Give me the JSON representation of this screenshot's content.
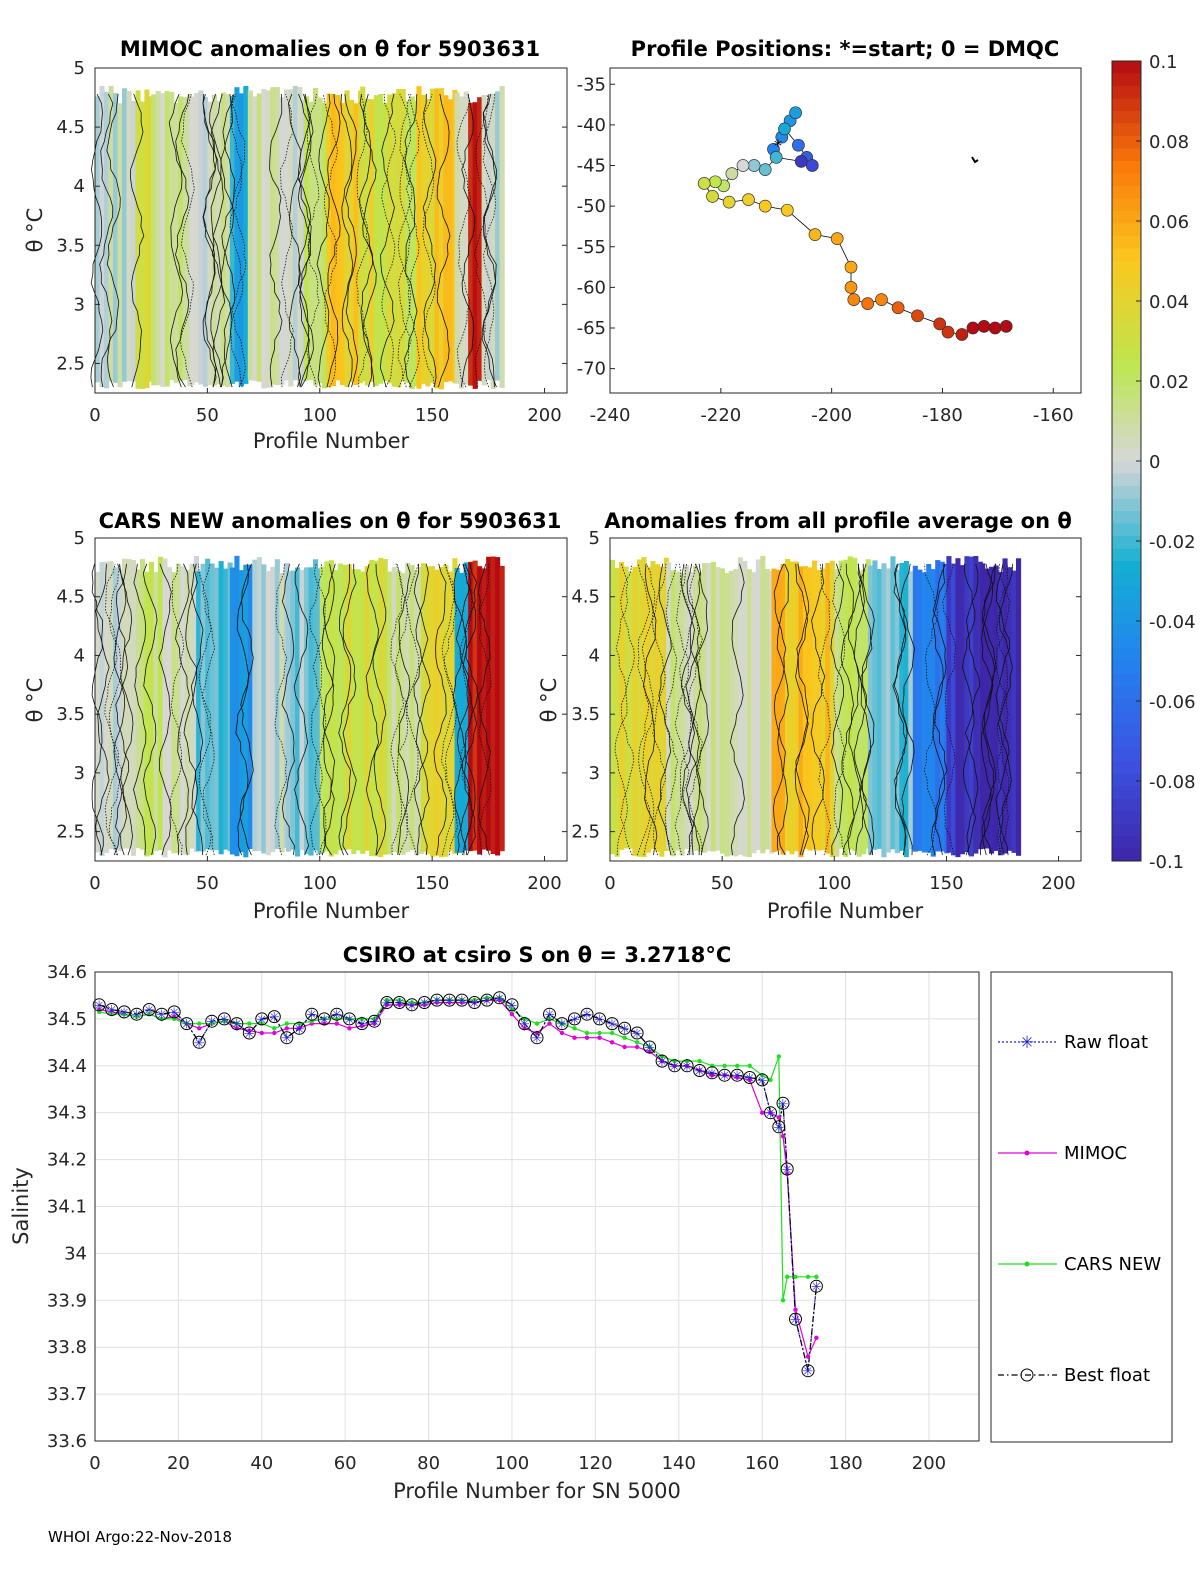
{
  "footer": "WHOI Argo:22-Nov-2018",
  "colorbar": {
    "ticks": [
      "0.1",
      "0.08",
      "0.06",
      "0.04",
      "0.02",
      "0",
      "-0.02",
      "-0.04",
      "-0.06",
      "-0.08",
      "-0.1"
    ],
    "range": [
      -0.1,
      0.1
    ]
  },
  "chart_data": [
    {
      "id": "mimoc",
      "type": "heatmap",
      "title": "MIMOC anomalies on θ  for 5903631",
      "xlabel": "Profile Number",
      "ylabel": "θ °C",
      "xlim": [
        0,
        210
      ],
      "ylim": [
        2.25,
        5.0
      ],
      "xticks": [
        "0",
        "50",
        "100",
        "150",
        "200"
      ],
      "yticks": [
        "5",
        "4.5",
        "4",
        "3.5",
        "3",
        "2.5"
      ],
      "bands": [
        {
          "x0": 0,
          "x1": 18,
          "value": 0.0
        },
        {
          "x0": 18,
          "x1": 25,
          "value": 0.03
        },
        {
          "x0": 25,
          "x1": 42,
          "value": 0.01
        },
        {
          "x0": 42,
          "x1": 60,
          "value": 0.005
        },
        {
          "x0": 60,
          "x1": 68,
          "value": -0.03
        },
        {
          "x0": 68,
          "x1": 80,
          "value": 0.01
        },
        {
          "x0": 80,
          "x1": 93,
          "value": 0.0
        },
        {
          "x0": 93,
          "x1": 103,
          "value": 0.02
        },
        {
          "x0": 103,
          "x1": 118,
          "value": 0.045
        },
        {
          "x0": 118,
          "x1": 130,
          "value": 0.035
        },
        {
          "x0": 130,
          "x1": 143,
          "value": 0.03
        },
        {
          "x0": 143,
          "x1": 160,
          "value": 0.045
        },
        {
          "x0": 160,
          "x1": 166,
          "value": 0.0
        },
        {
          "x0": 166,
          "x1": 172,
          "value": 0.1
        },
        {
          "x0": 172,
          "x1": 182,
          "value": 0.0
        }
      ]
    },
    {
      "id": "positions",
      "type": "scatter",
      "title": "Profile Positions: *=start; 0 = DMQC",
      "xlim": [
        -240,
        -155
      ],
      "ylim": [
        -73,
        -33
      ],
      "xticks": [
        "-240",
        "-220",
        "-200",
        "-180",
        "-160"
      ],
      "yticks": [
        "-35",
        "-40",
        "-45",
        "-50",
        "-55",
        "-60",
        "-65",
        "-70"
      ],
      "points": [
        {
          "lon": -210.5,
          "lat": -43.0,
          "v": -0.05
        },
        {
          "lon": -209,
          "lat": -41.5,
          "v": -0.045
        },
        {
          "lon": -207.5,
          "lat": -39.5,
          "v": -0.04
        },
        {
          "lon": -206.5,
          "lat": -38.5,
          "v": -0.035
        },
        {
          "lon": -208.5,
          "lat": -40.5,
          "v": -0.03
        },
        {
          "lon": -206,
          "lat": -42.5,
          "v": -0.06
        },
        {
          "lon": -204.5,
          "lat": -44.0,
          "v": -0.07
        },
        {
          "lon": -203.5,
          "lat": -45.0,
          "v": -0.08
        },
        {
          "lon": -205.5,
          "lat": -44.5,
          "v": -0.09
        },
        {
          "lon": -210,
          "lat": -44.0,
          "v": -0.02
        },
        {
          "lon": -212,
          "lat": -45.5,
          "v": -0.015
        },
        {
          "lon": -214,
          "lat": -45.0,
          "v": -0.01
        },
        {
          "lon": -216,
          "lat": -45.0,
          "v": 0.0
        },
        {
          "lon": -218,
          "lat": -46.0,
          "v": 0.01
        },
        {
          "lon": -219.5,
          "lat": -47.5,
          "v": 0.02
        },
        {
          "lon": -221,
          "lat": -47.0,
          "v": 0.025
        },
        {
          "lon": -223,
          "lat": -47.2,
          "v": 0.03
        },
        {
          "lon": -221.5,
          "lat": -48.8,
          "v": 0.035
        },
        {
          "lon": -218.5,
          "lat": -49.5,
          "v": 0.04
        },
        {
          "lon": -215,
          "lat": -49.2,
          "v": 0.045
        },
        {
          "lon": -212,
          "lat": -50.0,
          "v": 0.05
        },
        {
          "lon": -208,
          "lat": -50.5,
          "v": 0.05
        },
        {
          "lon": -203,
          "lat": -53.5,
          "v": 0.055
        },
        {
          "lon": -199,
          "lat": -54.0,
          "v": 0.06
        },
        {
          "lon": -196.5,
          "lat": -57.5,
          "v": 0.06
        },
        {
          "lon": -196.5,
          "lat": -60.0,
          "v": 0.065
        },
        {
          "lon": -196,
          "lat": -61.5,
          "v": 0.07
        },
        {
          "lon": -193.5,
          "lat": -62.0,
          "v": 0.075
        },
        {
          "lon": -191,
          "lat": -61.5,
          "v": 0.07
        },
        {
          "lon": -188,
          "lat": -62.5,
          "v": 0.08
        },
        {
          "lon": -184.5,
          "lat": -63.5,
          "v": 0.085
        },
        {
          "lon": -180.5,
          "lat": -64.5,
          "v": 0.09
        },
        {
          "lon": -179,
          "lat": -65.5,
          "v": 0.09
        },
        {
          "lon": -176.5,
          "lat": -65.8,
          "v": 0.095
        },
        {
          "lon": -174.5,
          "lat": -65.0,
          "v": 0.1
        },
        {
          "lon": -172.5,
          "lat": -64.8,
          "v": 0.1
        },
        {
          "lon": -170.5,
          "lat": -65.0,
          "v": 0.1
        },
        {
          "lon": -168.5,
          "lat": -64.8,
          "v": 0.1
        }
      ]
    },
    {
      "id": "cars",
      "type": "heatmap",
      "title": "CARS NEW anomalies on θ for 5903631",
      "xlabel": "Profile Number",
      "ylabel": "θ °C",
      "xlim": [
        0,
        210
      ],
      "ylim": [
        2.25,
        5.0
      ],
      "xticks": [
        "0",
        "50",
        "100",
        "150",
        "200"
      ],
      "yticks": [
        "5",
        "4.5",
        "4",
        "3.5",
        "3",
        "2.5"
      ],
      "bands": [
        {
          "x0": 0,
          "x1": 18,
          "value": 0.0
        },
        {
          "x0": 18,
          "x1": 30,
          "value": 0.02
        },
        {
          "x0": 30,
          "x1": 45,
          "value": 0.005
        },
        {
          "x0": 45,
          "x1": 60,
          "value": -0.015
        },
        {
          "x0": 60,
          "x1": 70,
          "value": -0.04
        },
        {
          "x0": 70,
          "x1": 85,
          "value": 0.0
        },
        {
          "x0": 85,
          "x1": 100,
          "value": -0.01
        },
        {
          "x0": 100,
          "x1": 112,
          "value": 0.02
        },
        {
          "x0": 112,
          "x1": 130,
          "value": 0.03
        },
        {
          "x0": 130,
          "x1": 145,
          "value": 0.01
        },
        {
          "x0": 145,
          "x1": 160,
          "value": 0.035
        },
        {
          "x0": 160,
          "x1": 166,
          "value": -0.02
        },
        {
          "x0": 166,
          "x1": 172,
          "value": 0.1
        },
        {
          "x0": 172,
          "x1": 182,
          "value": 0.1
        }
      ]
    },
    {
      "id": "allavg",
      "type": "heatmap",
      "title": "Anomalies from all profile average on θ",
      "xlabel": "Profile Number",
      "ylabel": "θ °C",
      "xlim": [
        0,
        210
      ],
      "ylim": [
        2.25,
        5.0
      ],
      "xticks": [
        "0",
        "50",
        "100",
        "150",
        "200"
      ],
      "yticks": [
        "5",
        "4.5",
        "4",
        "3.5",
        "3",
        "2.5"
      ],
      "bands": [
        {
          "x0": 0,
          "x1": 25,
          "value": 0.035
        },
        {
          "x0": 25,
          "x1": 55,
          "value": 0.01
        },
        {
          "x0": 55,
          "x1": 72,
          "value": 0.005
        },
        {
          "x0": 72,
          "x1": 100,
          "value": 0.05
        },
        {
          "x0": 100,
          "x1": 115,
          "value": 0.02
        },
        {
          "x0": 115,
          "x1": 135,
          "value": -0.015
        },
        {
          "x0": 135,
          "x1": 150,
          "value": -0.05
        },
        {
          "x0": 150,
          "x1": 165,
          "value": -0.09
        },
        {
          "x0": 165,
          "x1": 182,
          "value": -0.1
        }
      ]
    },
    {
      "id": "salinity",
      "type": "line",
      "title": "CSIRO at csiro S on θ = 3.2718°C",
      "xlabel": "Profile Number for SN 5000",
      "ylabel": "Salinity",
      "xlim": [
        0,
        212
      ],
      "ylim": [
        33.6,
        34.6
      ],
      "xticks": [
        "0",
        "20",
        "40",
        "60",
        "80",
        "100",
        "120",
        "140",
        "160",
        "180",
        "200"
      ],
      "yticks": [
        "34.6",
        "34.5",
        "34.4",
        "34.3",
        "34.2",
        "34.1",
        "34",
        "33.9",
        "33.8",
        "33.7",
        "33.6"
      ],
      "legend": [
        "Raw float",
        "MIMOC",
        "CARS NEW",
        "Best float"
      ],
      "x": [
        1,
        4,
        7,
        10,
        13,
        16,
        19,
        22,
        25,
        28,
        31,
        34,
        37,
        40,
        43,
        46,
        49,
        52,
        55,
        58,
        61,
        64,
        67,
        70,
        73,
        76,
        79,
        82,
        85,
        88,
        91,
        94,
        97,
        100,
        103,
        106,
        109,
        112,
        115,
        118,
        121,
        124,
        127,
        130,
        133,
        136,
        139,
        142,
        145,
        148,
        151,
        154,
        157,
        160,
        162,
        164,
        165,
        166,
        168,
        171,
        173
      ],
      "series": [
        {
          "name": "Raw float",
          "values": [
            34.53,
            34.52,
            34.515,
            34.51,
            34.52,
            34.51,
            34.515,
            34.49,
            34.45,
            34.495,
            34.5,
            34.49,
            34.47,
            34.5,
            34.505,
            34.46,
            34.48,
            34.51,
            34.5,
            34.51,
            34.5,
            34.49,
            34.495,
            34.535,
            34.535,
            34.53,
            34.535,
            34.54,
            34.54,
            34.54,
            34.535,
            34.54,
            34.545,
            34.53,
            34.49,
            34.46,
            34.51,
            34.49,
            34.5,
            34.51,
            34.5,
            34.49,
            34.48,
            34.47,
            34.44,
            34.41,
            34.4,
            34.4,
            34.39,
            34.385,
            34.38,
            34.38,
            34.375,
            34.37,
            34.3,
            34.27,
            34.32,
            34.18,
            33.86,
            33.75,
            33.93
          ]
        },
        {
          "name": "MIMOC",
          "values": [
            34.52,
            34.515,
            34.51,
            34.505,
            34.51,
            34.5,
            34.505,
            34.49,
            34.48,
            34.49,
            34.495,
            34.48,
            34.475,
            34.47,
            34.47,
            34.48,
            34.48,
            34.49,
            34.49,
            34.49,
            34.48,
            34.485,
            34.49,
            34.53,
            34.53,
            34.53,
            34.53,
            34.535,
            34.535,
            34.535,
            34.535,
            34.54,
            34.54,
            34.51,
            34.48,
            34.47,
            34.49,
            34.47,
            34.46,
            34.46,
            34.46,
            34.45,
            34.44,
            34.44,
            34.43,
            34.41,
            34.4,
            34.4,
            34.39,
            34.38,
            34.38,
            34.375,
            34.37,
            34.3,
            34.3,
            34.29,
            34.25,
            34.17,
            33.88,
            33.78,
            33.82
          ]
        },
        {
          "name": "CARS NEW",
          "values": [
            34.515,
            34.51,
            34.51,
            34.505,
            34.51,
            34.5,
            34.5,
            34.49,
            34.49,
            34.49,
            34.495,
            34.49,
            34.49,
            34.49,
            34.48,
            34.49,
            34.49,
            34.495,
            34.5,
            34.5,
            34.5,
            34.5,
            34.5,
            34.54,
            34.54,
            34.535,
            34.535,
            34.54,
            34.54,
            34.54,
            34.54,
            34.545,
            34.545,
            34.52,
            34.5,
            34.49,
            34.5,
            34.49,
            34.48,
            34.47,
            34.47,
            34.47,
            34.46,
            34.45,
            34.44,
            34.42,
            34.41,
            34.41,
            34.41,
            34.4,
            34.4,
            34.4,
            34.4,
            34.38,
            34.37,
            34.42,
            33.9,
            33.95,
            33.95,
            33.95,
            33.95
          ]
        },
        {
          "name": "Best float",
          "values": [
            34.53,
            34.52,
            34.515,
            34.51,
            34.52,
            34.51,
            34.515,
            34.49,
            34.45,
            34.495,
            34.5,
            34.49,
            34.47,
            34.5,
            34.505,
            34.46,
            34.48,
            34.51,
            34.5,
            34.51,
            34.5,
            34.49,
            34.495,
            34.535,
            34.535,
            34.53,
            34.535,
            34.54,
            34.54,
            34.54,
            34.535,
            34.54,
            34.545,
            34.53,
            34.49,
            34.46,
            34.51,
            34.49,
            34.5,
            34.51,
            34.5,
            34.49,
            34.48,
            34.47,
            34.44,
            34.41,
            34.4,
            34.4,
            34.39,
            34.385,
            34.38,
            34.38,
            34.375,
            34.37,
            34.3,
            34.27,
            34.32,
            34.18,
            33.86,
            33.75,
            33.93
          ]
        }
      ]
    }
  ]
}
